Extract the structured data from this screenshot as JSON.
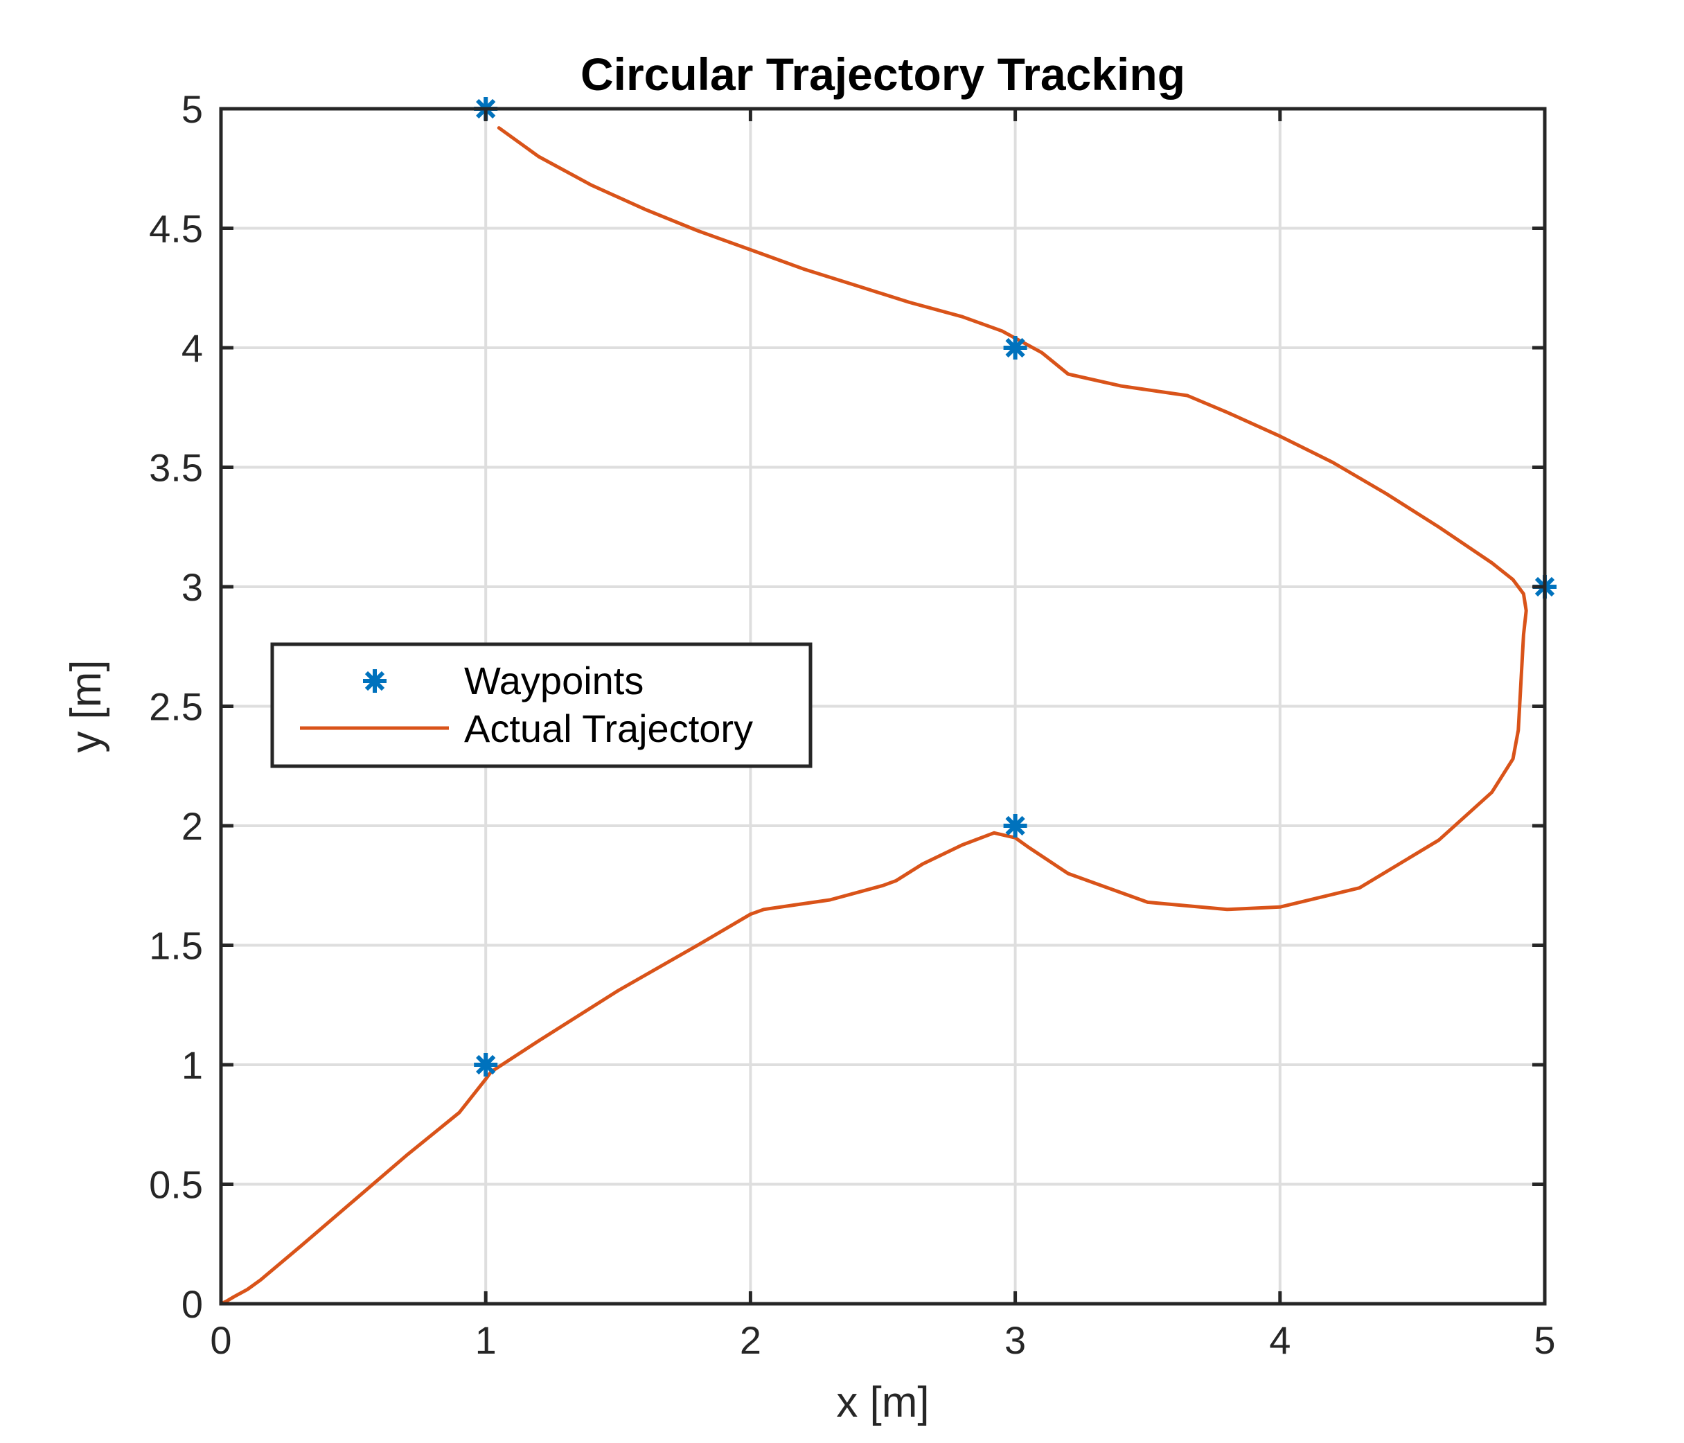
{
  "chart_data": {
    "type": "line",
    "title": "Circular Trajectory Tracking",
    "xlabel": "x [m]",
    "ylabel": "y [m]",
    "xlim": [
      0,
      5
    ],
    "ylim": [
      0,
      5
    ],
    "xticks": [
      0,
      1,
      2,
      3,
      4,
      5
    ],
    "yticks": [
      0,
      0.5,
      1,
      1.5,
      2,
      2.5,
      3,
      3.5,
      4,
      4.5,
      5
    ],
    "xtick_labels": [
      "0",
      "1",
      "2",
      "3",
      "4",
      "5"
    ],
    "ytick_labels": [
      "0",
      "0.5",
      "1",
      "1.5",
      "2",
      "2.5",
      "3",
      "3.5",
      "4",
      "4.5",
      "5"
    ],
    "grid": true,
    "legend_position": "middle-left",
    "series": [
      {
        "name": "Waypoints",
        "style": "markers",
        "marker": "asterisk",
        "color": "#0072BD",
        "x": [
          1,
          3,
          5,
          3,
          1
        ],
        "y": [
          5,
          4,
          3,
          2,
          1
        ]
      },
      {
        "name": "Actual Trajectory",
        "style": "line",
        "color": "#D95319",
        "x": [
          1.05,
          1.2,
          1.4,
          1.6,
          1.8,
          2.0,
          2.2,
          2.4,
          2.6,
          2.8,
          2.95,
          3.0,
          3.1,
          3.2,
          3.4,
          3.65,
          3.8,
          4.0,
          4.2,
          4.4,
          4.6,
          4.8,
          4.88,
          4.92,
          4.93,
          4.92,
          4.91,
          4.9,
          4.88,
          4.8,
          4.6,
          4.3,
          4.0,
          3.8,
          3.5,
          3.2,
          3.05,
          3.0,
          2.92,
          2.8,
          2.65,
          2.55,
          2.5,
          2.3,
          2.05,
          2.0,
          1.8,
          1.5,
          1.2,
          1.02,
          1.0,
          0.9,
          0.7,
          0.5,
          0.3,
          0.15,
          0.1,
          0.05,
          0.02,
          0.0
        ],
        "y": [
          4.92,
          4.8,
          4.68,
          4.58,
          4.49,
          4.41,
          4.33,
          4.26,
          4.19,
          4.13,
          4.07,
          4.04,
          3.98,
          3.89,
          3.84,
          3.8,
          3.73,
          3.63,
          3.52,
          3.39,
          3.25,
          3.1,
          3.03,
          2.97,
          2.9,
          2.8,
          2.6,
          2.4,
          2.28,
          2.14,
          1.94,
          1.74,
          1.66,
          1.65,
          1.68,
          1.8,
          1.91,
          1.95,
          1.97,
          1.92,
          1.84,
          1.77,
          1.75,
          1.69,
          1.65,
          1.63,
          1.5,
          1.31,
          1.1,
          0.97,
          0.94,
          0.8,
          0.62,
          0.43,
          0.24,
          0.1,
          0.06,
          0.03,
          0.01,
          0.0
        ]
      }
    ]
  }
}
